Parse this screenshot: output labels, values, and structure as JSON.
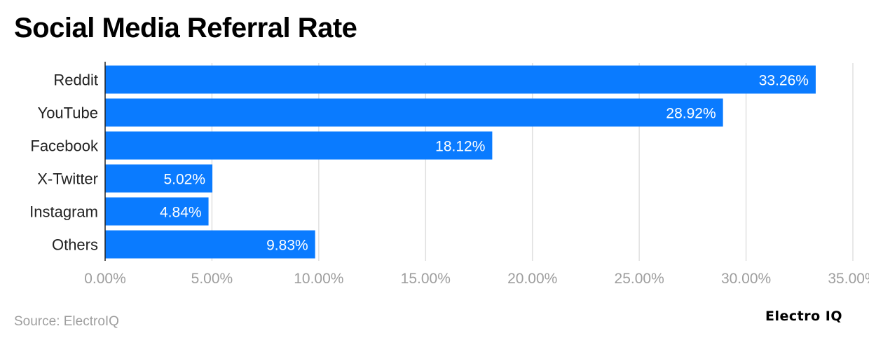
{
  "title": "Social Media Referral Rate",
  "source": "Source: ElectroIQ",
  "logo": "Electro IQ",
  "colors": {
    "bar": "#0a7bff",
    "grid": "#e0e0e0",
    "axis": "#222222",
    "tick": "#9e9e9e"
  },
  "chart_data": {
    "type": "bar",
    "orientation": "horizontal",
    "title": "Social Media Referral Rate",
    "categories": [
      "Reddit",
      "YouTube",
      "Facebook",
      "X-Twitter",
      "Instagram",
      "Others"
    ],
    "values": [
      33.26,
      28.92,
      18.12,
      5.02,
      4.84,
      9.83
    ],
    "data_labels": [
      "33.26%",
      "28.92%",
      "18.12%",
      "5.02%",
      "4.84%",
      "9.83%"
    ],
    "xlim": [
      0,
      35
    ],
    "xticks": [
      0,
      5,
      10,
      15,
      20,
      25,
      30,
      35
    ],
    "xtick_labels": [
      "0.00%",
      "5.00%",
      "10.00%",
      "15.00%",
      "20.00%",
      "25.00%",
      "30.00%",
      "35.00%"
    ],
    "grid": true,
    "legend": "none"
  }
}
